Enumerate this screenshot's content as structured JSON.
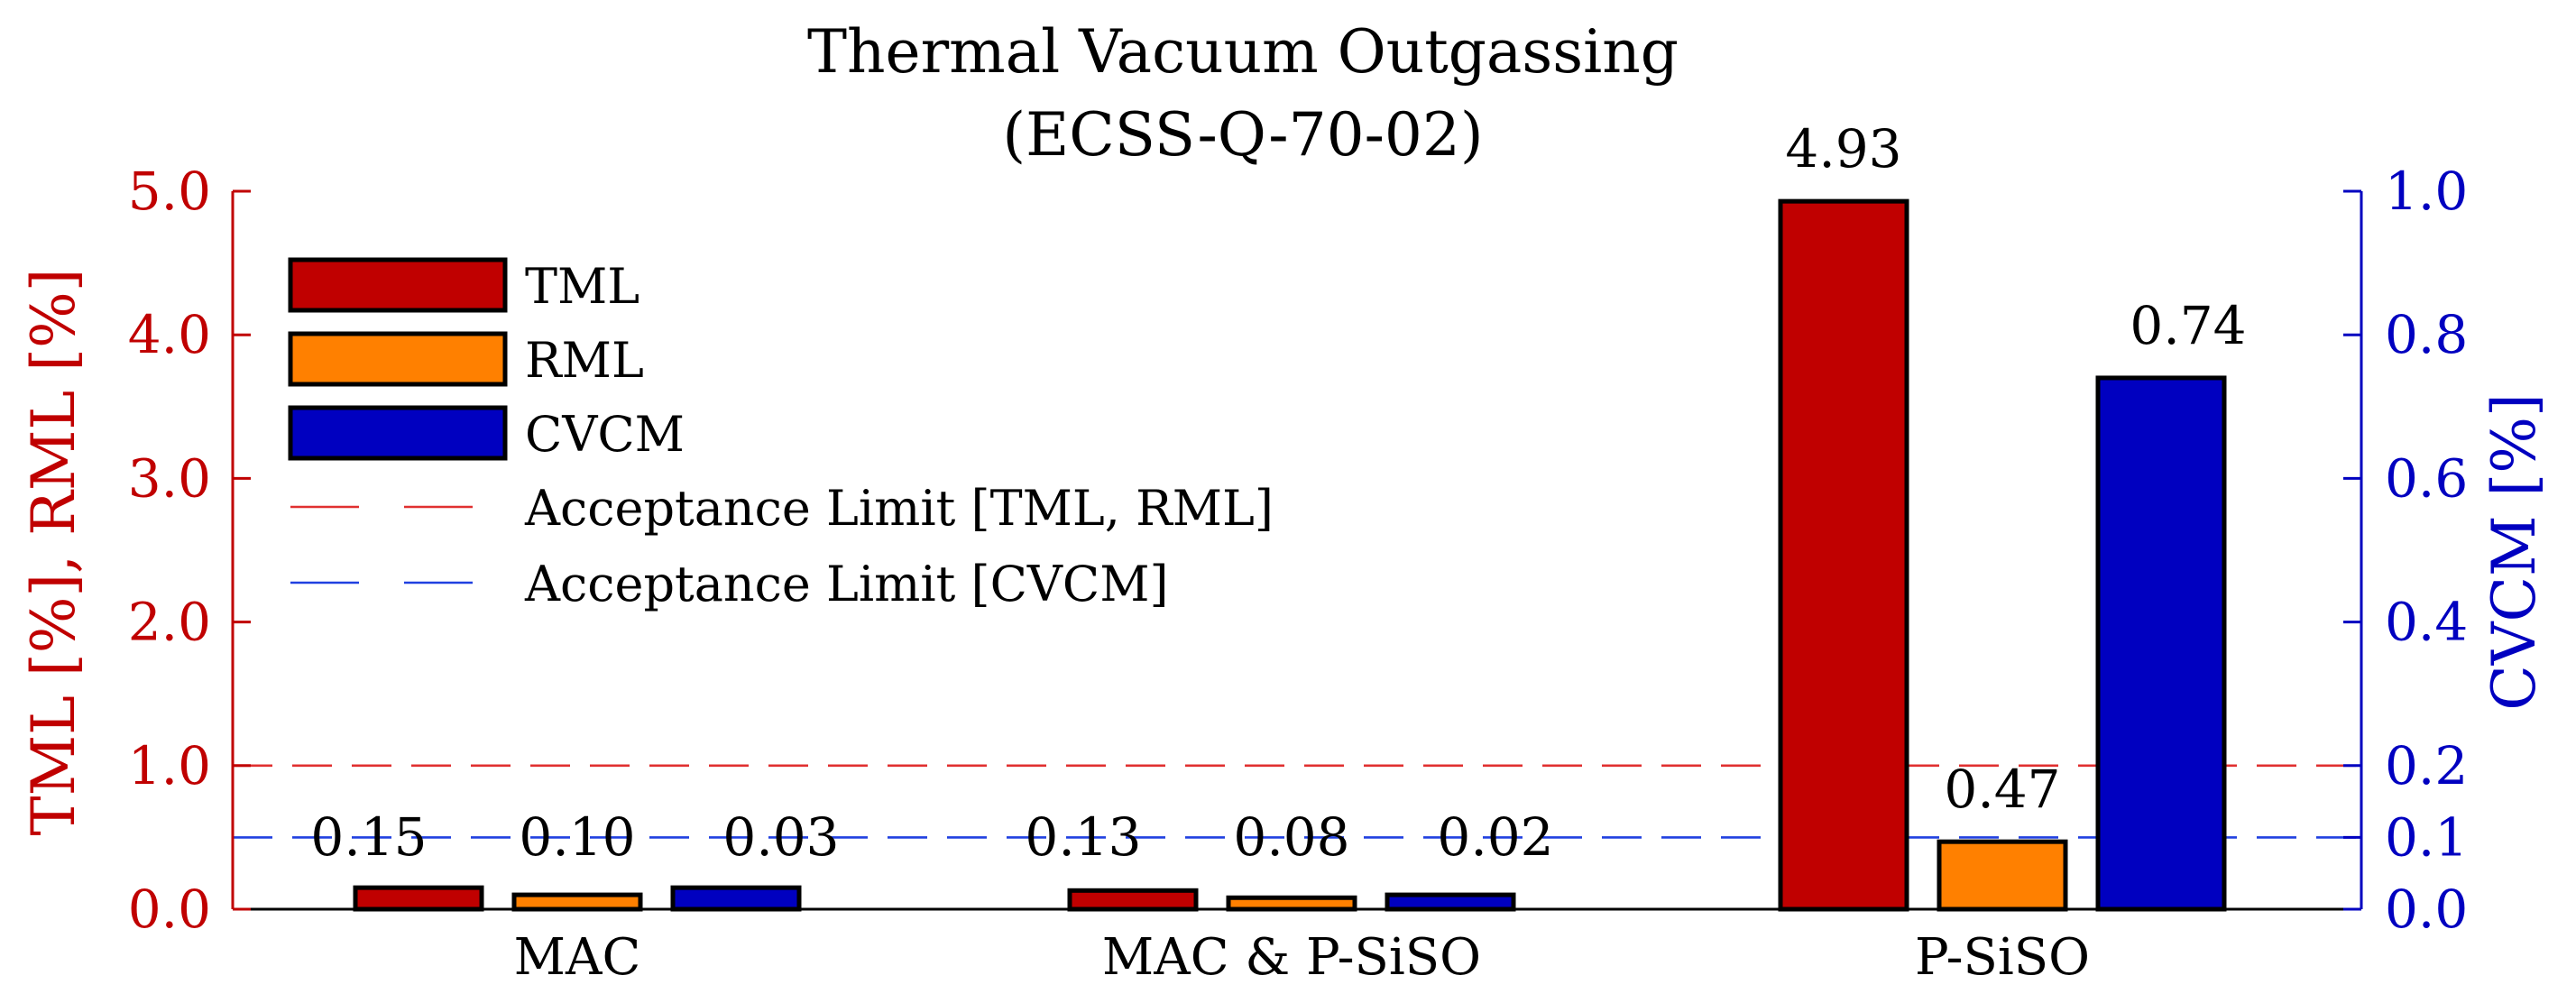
{
  "chart_data": {
    "type": "bar",
    "title": "Thermal Vacuum Outgassing",
    "subtitle": "(ECSS-Q-70-02)",
    "categories": [
      "MAC",
      "MAC & P-SiSO",
      "P-SiSO"
    ],
    "series": [
      {
        "name": "TML",
        "axis": "left",
        "color": "#c00000",
        "values": [
          0.15,
          0.13,
          4.93
        ],
        "labels": [
          "0.15",
          "0.13",
          "4.93"
        ]
      },
      {
        "name": "RML",
        "axis": "left",
        "color": "#ff8000",
        "values": [
          0.1,
          0.08,
          0.47
        ],
        "labels": [
          "0.10",
          "0.08",
          "0.47"
        ]
      },
      {
        "name": "CVCM",
        "axis": "right",
        "color": "#0000c0",
        "values": [
          0.03,
          0.02,
          0.74
        ],
        "labels": [
          "0.03",
          "0.02",
          "0.74"
        ]
      }
    ],
    "left_axis": {
      "label": "TML [%], RML [%]",
      "color": "#c00000",
      "ylim": [
        0,
        5
      ],
      "ticks": [
        0,
        1,
        2,
        3,
        4,
        5
      ],
      "tick_labels": [
        "0.0",
        "1.0",
        "2.0",
        "3.0",
        "4.0",
        "5.0"
      ]
    },
    "right_axis": {
      "label": "CVCM [%]",
      "color": "#0000c0",
      "ylim": [
        0,
        1
      ],
      "ticks": [
        0,
        0.1,
        0.2,
        0.4,
        0.6,
        0.8,
        1.0
      ],
      "tick_labels": [
        "0.0",
        "0.1",
        "0.2",
        "0.4",
        "0.6",
        "0.8",
        "1.0"
      ]
    },
    "reference_lines": [
      {
        "name": "Acceptance Limit [TML, RML]",
        "axis": "left",
        "value": 1.0,
        "color": "#e03030",
        "style": "dashed"
      },
      {
        "name": "Acceptance Limit [CVCM]",
        "axis": "right",
        "value": 0.1,
        "color": "#2040e0",
        "style": "dashed"
      }
    ],
    "legend": {
      "position": "top-left",
      "entries": [
        "TML",
        "RML",
        "CVCM",
        "Acceptance Limit [TML, RML]",
        "Acceptance Limit [CVCM]"
      ]
    },
    "grid": false
  }
}
